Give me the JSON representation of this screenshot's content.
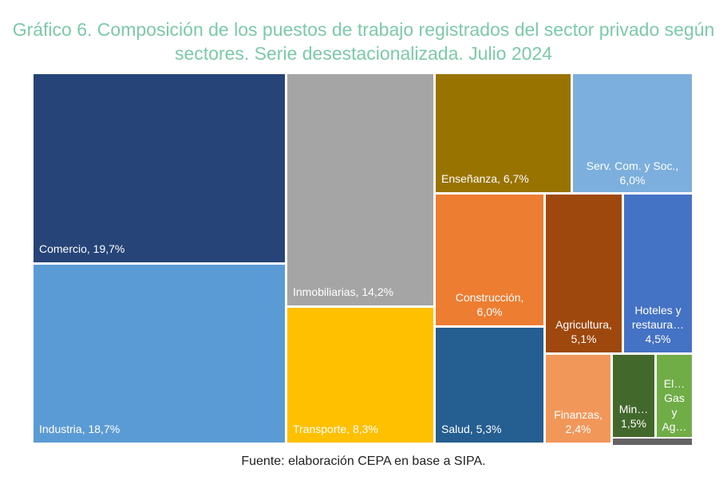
{
  "chart_data": {
    "type": "treemap",
    "title": "Gráfico 6. Composición de los puestos de trabajo registrados del sector privado según sectores. Serie desestacionalizada. Julio 2024",
    "source": "Fuente: elaboración CEPA en base a SIPA.",
    "items": [
      {
        "name": "Comercio",
        "value": 19.7,
        "label": "Comercio, 19,7%",
        "color": "#264478"
      },
      {
        "name": "Industria",
        "value": 18.7,
        "label": "Industria, 18,7%",
        "color": "#5B9BD5"
      },
      {
        "name": "Inmobiliarias",
        "value": 14.2,
        "label": "Inmobiliarias, 14,2%",
        "color": "#A5A5A5"
      },
      {
        "name": "Transporte",
        "value": 8.3,
        "label": "Transporte, 8,3%",
        "color": "#FFC000"
      },
      {
        "name": "Enseñanza",
        "value": 6.7,
        "label": "Enseñanza, 6,7%",
        "color": "#997300"
      },
      {
        "name": "Serv. Com. y Soc.",
        "value": 6.0,
        "label": "Serv. Com. y Soc.,\n6,0%",
        "color": "#7CAFDD"
      },
      {
        "name": "Construcción",
        "value": 6.0,
        "label": "Construcción,\n6,0%",
        "color": "#ED7D31"
      },
      {
        "name": "Salud",
        "value": 5.3,
        "label": "Salud, 5,3%",
        "color": "#255E91"
      },
      {
        "name": "Agricultura",
        "value": 5.1,
        "label": "Agricultura,\n5,1%",
        "color": "#9E480E"
      },
      {
        "name": "Hoteles y restaura…",
        "value": 4.5,
        "label": "Hoteles y\nrestaura…\n4,5%",
        "color": "#4472C4"
      },
      {
        "name": "Finanzas",
        "value": 2.4,
        "label": "Finanzas,\n2,4%",
        "color": "#F1975A"
      },
      {
        "name": "Min…",
        "value": 1.5,
        "label": "Min…\n1,5%",
        "color": "#43682B"
      },
      {
        "name": "El… Gas y Ag…",
        "value": null,
        "label": "El…\nGas\ny\nAg…",
        "color": "#70AD47"
      },
      {
        "name": "",
        "value": null,
        "label": "",
        "color": "#636363"
      }
    ]
  }
}
